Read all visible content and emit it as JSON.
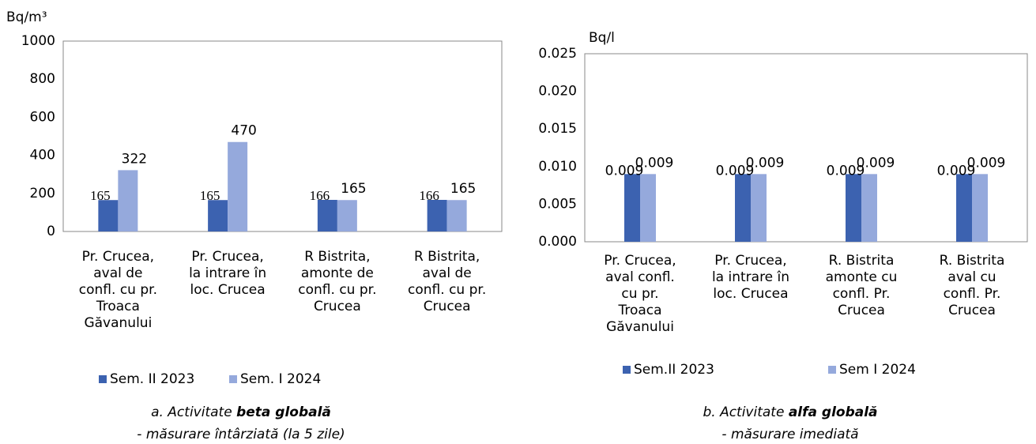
{
  "chart_data": [
    {
      "type": "bar",
      "ylabel": "Bq/m³",
      "title": [
        "a. Activitate ",
        "beta globală"
      ],
      "subtitle": "- măsurare întârziată (la 5 zile)",
      "categories": [
        [
          "Pr. Crucea,",
          "aval de",
          "confl. cu pr.",
          "Troaca",
          "Găvanului"
        ],
        [
          "Pr. Crucea,",
          "la intrare în",
          "loc. Crucea"
        ],
        [
          "R Bistrita,",
          "amonte de",
          "confl. cu pr.",
          "Crucea"
        ],
        [
          "R Bistrita,",
          "aval de",
          "confl. cu pr.",
          "Crucea"
        ]
      ],
      "series": [
        {
          "name": "Sem. II 2023",
          "color": "#3c62b0",
          "values": [
            165,
            165,
            166,
            166
          ]
        },
        {
          "name": "Sem. I 2024",
          "color": "#95a9dc",
          "values": [
            322,
            470,
            165,
            165
          ]
        }
      ],
      "ylim": [
        0,
        1000
      ],
      "yticks": [
        0,
        200,
        400,
        600,
        800,
        1000
      ],
      "grid": false
    },
    {
      "type": "bar",
      "ylabel": "Bq/l",
      "title": [
        "b. Activitate ",
        "alfa globală"
      ],
      "subtitle": "- măsurare imediată",
      "categories": [
        [
          "Pr. Crucea,",
          "aval confl.",
          "cu pr.",
          "Troaca",
          "Găvanului"
        ],
        [
          "Pr. Crucea,",
          "la intrare în",
          "loc. Crucea"
        ],
        [
          "R. Bistrita",
          "amonte cu",
          "confl. Pr.",
          "Crucea"
        ],
        [
          "R. Bistrita",
          "aval  cu",
          "confl. Pr.",
          "Crucea"
        ]
      ],
      "series": [
        {
          "name": "Sem.II 2023",
          "color": "#3c62b0",
          "values": [
            0.009,
            0.009,
            0.009,
            0.009
          ]
        },
        {
          "name": "Sem I 2024",
          "color": "#95a9dc",
          "values": [
            0.009,
            0.009,
            0.009,
            0.009
          ]
        }
      ],
      "ylim": [
        0,
        0.025
      ],
      "yticks": [
        {
          "value": 0,
          "label": "0.000"
        },
        0.005,
        {
          "value": 0.01,
          "label": "0.010"
        },
        0.015,
        {
          "value": 0.02,
          "label": "0.020"
        },
        0.025
      ],
      "grid": false
    }
  ]
}
